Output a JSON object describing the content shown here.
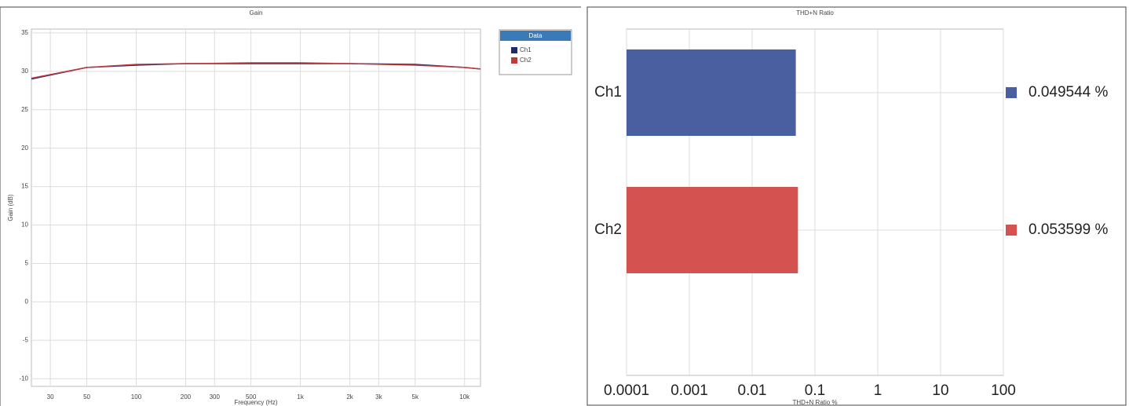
{
  "chart_data": [
    {
      "type": "line",
      "title": "Gain",
      "x_label": "Frequency (Hz)",
      "y_label": "Gain (dB)",
      "x_scale": "log",
      "xlim": [
        23,
        12500
      ],
      "ylim": [
        -11,
        35.5
      ],
      "xticks": [
        30,
        50,
        100,
        200,
        300,
        500,
        {
          "value": 1000,
          "label": "1k"
        },
        {
          "value": 2000,
          "label": "2k"
        },
        {
          "value": 3000,
          "label": "3k"
        },
        {
          "value": 5000,
          "label": "5k"
        },
        {
          "value": 10000,
          "label": "10k"
        }
      ],
      "yticks": [
        -10,
        -5,
        0,
        5,
        10,
        15,
        20,
        25,
        30,
        35
      ],
      "grid": true,
      "legend_title": "Data",
      "legend_position": "outside-right",
      "x": [
        23,
        50,
        100,
        200,
        500,
        1000,
        2000,
        5000,
        10000,
        12500
      ],
      "series": [
        {
          "name": "Ch1",
          "color": "#1f2a6e",
          "values": [
            29.0,
            30.5,
            30.8,
            31.0,
            31.0,
            31.0,
            31.0,
            30.9,
            30.5,
            30.3
          ]
        },
        {
          "name": "Ch2",
          "color": "#c0393b",
          "values": [
            29.1,
            30.5,
            30.9,
            31.0,
            31.1,
            31.1,
            31.0,
            30.8,
            30.5,
            30.3
          ]
        }
      ]
    },
    {
      "type": "bar",
      "orientation": "horizontal",
      "title": "THD+N Ratio",
      "x_label": "THD+N Ratio %",
      "x_scale": "log",
      "xlim": [
        0.0001,
        100
      ],
      "xticks": [
        0.0001,
        0.001,
        0.01,
        0.1,
        1,
        10,
        100
      ],
      "grid": true,
      "categories": [
        "Ch1",
        "Ch2"
      ],
      "values": [
        0.049544,
        0.053599
      ],
      "value_labels": [
        "0.049544 %",
        "0.053599 %"
      ],
      "colors": [
        "#4a5fa0",
        "#d4524f"
      ]
    }
  ]
}
